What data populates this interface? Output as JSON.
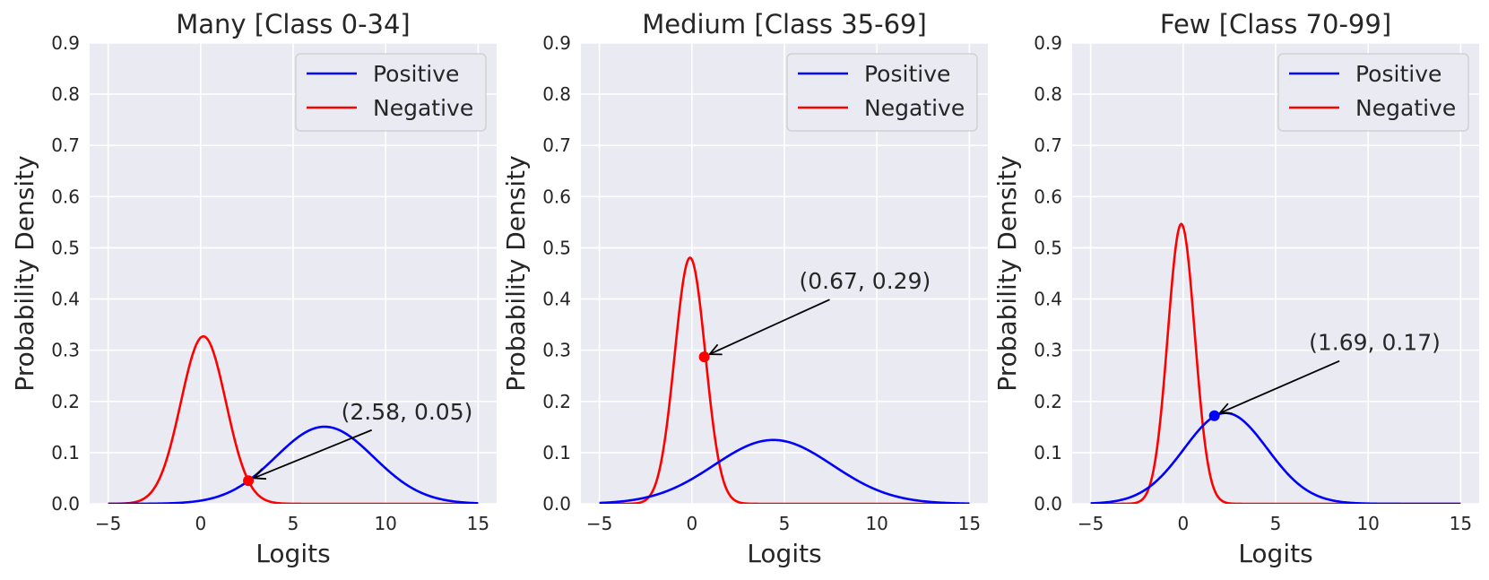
{
  "chart_data": [
    {
      "type": "line",
      "title": "Many [Class 0-34]",
      "xlabel": "Logits",
      "ylabel": "Probability Density",
      "xlim": [
        -6,
        16
      ],
      "ylim": [
        0,
        0.9
      ],
      "xticks": [
        -5,
        0,
        5,
        10,
        15
      ],
      "xtick_labels": [
        "−5",
        "0",
        "5",
        "10",
        "15"
      ],
      "yticks": [
        0,
        0.1,
        0.2,
        0.3,
        0.4,
        0.5,
        0.6,
        0.7,
        0.8,
        0.9
      ],
      "ytick_labels": [
        "0.0",
        "0.1",
        "0.2",
        "0.3",
        "0.4",
        "0.5",
        "0.6",
        "0.7",
        "0.8",
        "0.9"
      ],
      "grid": true,
      "legend_position": "top-right",
      "series": [
        {
          "name": "Positive",
          "color": "#0000ff",
          "distribution": "normal",
          "mean": 6.7,
          "std": 2.65
        },
        {
          "name": "Negative",
          "color": "#ff0000",
          "distribution": "normal",
          "mean": 0.15,
          "std": 1.22
        }
      ],
      "annotation": {
        "text": "(2.58, 0.05)",
        "x": 2.58,
        "y": 0.045,
        "text_x": 7.6,
        "text_y": 0.165,
        "marker_color": "#ff0000"
      }
    },
    {
      "type": "line",
      "title": "Medium [Class 35-69]",
      "xlabel": "Logits",
      "ylabel": "Probability Density",
      "xlim": [
        -6,
        16
      ],
      "ylim": [
        0,
        0.9
      ],
      "xticks": [
        -5,
        0,
        5,
        10,
        15
      ],
      "xtick_labels": [
        "−5",
        "0",
        "5",
        "10",
        "15"
      ],
      "yticks": [
        0,
        0.1,
        0.2,
        0.3,
        0.4,
        0.5,
        0.6,
        0.7,
        0.8,
        0.9
      ],
      "ytick_labels": [
        "0.0",
        "0.1",
        "0.2",
        "0.3",
        "0.4",
        "0.5",
        "0.6",
        "0.7",
        "0.8",
        "0.9"
      ],
      "grid": true,
      "legend_position": "top-right",
      "series": [
        {
          "name": "Positive",
          "color": "#0000ff",
          "distribution": "normal",
          "mean": 4.4,
          "std": 3.2
        },
        {
          "name": "Negative",
          "color": "#ff0000",
          "distribution": "normal",
          "mean": -0.1,
          "std": 0.83
        }
      ],
      "annotation": {
        "text": "(0.67, 0.29)",
        "x": 0.67,
        "y": 0.287,
        "text_x": 5.8,
        "text_y": 0.42,
        "marker_color": "#ff0000"
      }
    },
    {
      "type": "line",
      "title": "Few [Class 70-99]",
      "xlabel": "Logits",
      "ylabel": "Probability Density",
      "xlim": [
        -6,
        16
      ],
      "ylim": [
        0,
        0.9
      ],
      "xticks": [
        -5,
        0,
        5,
        10,
        15
      ],
      "xtick_labels": [
        "−5",
        "0",
        "5",
        "10",
        "15"
      ],
      "yticks": [
        0,
        0.1,
        0.2,
        0.3,
        0.4,
        0.5,
        0.6,
        0.7,
        0.8,
        0.9
      ],
      "ytick_labels": [
        "0.0",
        "0.1",
        "0.2",
        "0.3",
        "0.4",
        "0.5",
        "0.6",
        "0.7",
        "0.8",
        "0.9"
      ],
      "grid": true,
      "legend_position": "top-right",
      "series": [
        {
          "name": "Positive",
          "color": "#0000ff",
          "distribution": "normal",
          "mean": 2.3,
          "std": 2.25
        },
        {
          "name": "Negative",
          "color": "#ff0000",
          "distribution": "normal",
          "mean": -0.1,
          "std": 0.73
        }
      ],
      "annotation": {
        "text": "(1.69, 0.17)",
        "x": 1.69,
        "y": 0.172,
        "text_x": 6.8,
        "text_y": 0.3,
        "marker_color": "#0000ff"
      }
    }
  ]
}
